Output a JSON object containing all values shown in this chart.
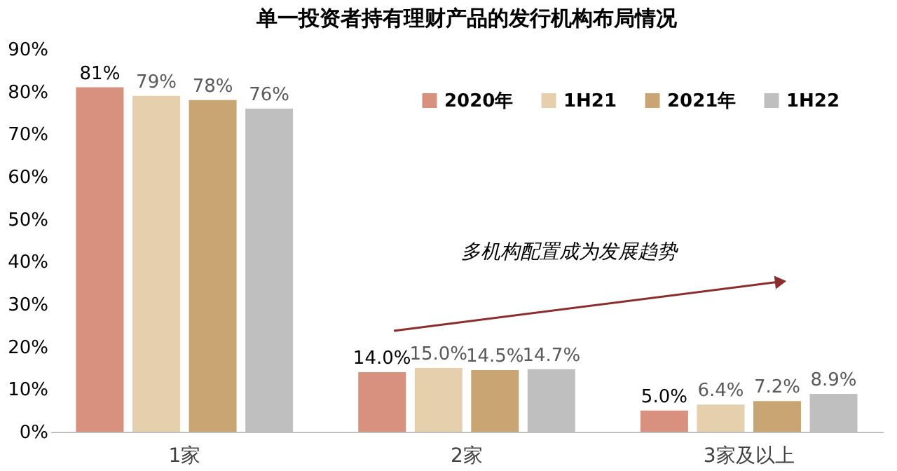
{
  "chart_data": {
    "type": "bar",
    "title": "单一投资者持有理财产品的发行机构布局情况",
    "categories": [
      "1家",
      "2家",
      "3家及以上"
    ],
    "series": [
      {
        "name": "2020年",
        "color": "#d9917f",
        "values": [
          81,
          14.0,
          5.0
        ],
        "value_labels": [
          "81%",
          "14.0%",
          "5.0%"
        ]
      },
      {
        "name": "1H21",
        "color": "#e6cfad",
        "values": [
          79,
          15.0,
          6.4
        ],
        "value_labels": [
          "79%",
          "15.0%",
          "6.4%"
        ]
      },
      {
        "name": "2021年",
        "color": "#c9a573",
        "values": [
          78,
          14.5,
          7.2
        ],
        "value_labels": [
          "78%",
          "14.5%",
          "7.2%"
        ]
      },
      {
        "name": "1H22",
        "color": "#bfbfbf",
        "values": [
          76,
          14.7,
          8.9
        ],
        "value_labels": [
          "76%",
          "14.7%",
          "8.9%"
        ]
      }
    ],
    "ylim": [
      0,
      90
    ],
    "yticks": [
      {
        "value": 0,
        "label": "0%"
      },
      {
        "value": 10,
        "label": "10%"
      },
      {
        "value": 20,
        "label": "20%"
      },
      {
        "value": 30,
        "label": "30%"
      },
      {
        "value": 40,
        "label": "40%"
      },
      {
        "value": 50,
        "label": "50%"
      },
      {
        "value": 60,
        "label": "60%"
      },
      {
        "value": 70,
        "label": "70%"
      },
      {
        "value": 80,
        "label": "80%"
      },
      {
        "value": 90,
        "label": "90%"
      }
    ],
    "annotations": [
      "多机构配置成为发展趋势"
    ],
    "legend": "top right",
    "grid": false
  }
}
